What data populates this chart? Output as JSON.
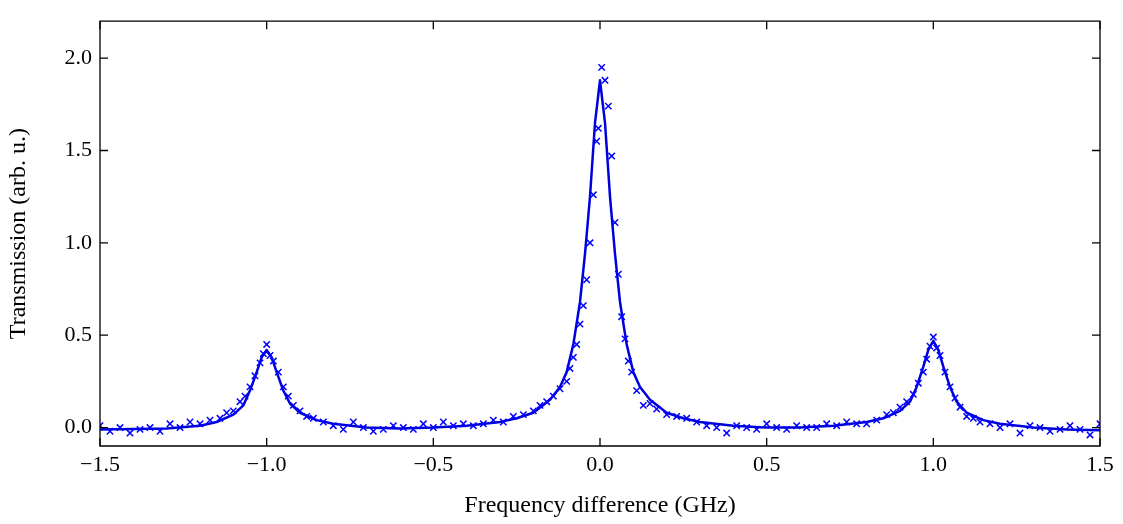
{
  "chart_data": {
    "type": "scatter",
    "xlabel": "Frequency difference (GHz)",
    "ylabel": "Transmission (arb. u.)",
    "xlim": [
      -1.5,
      1.5
    ],
    "xticks": [
      {
        "value": -1.5,
        "label": "−1.5"
      },
      {
        "value": -1.0,
        "label": "−1.0"
      },
      {
        "value": -0.5,
        "label": "−0.5"
      },
      {
        "value": 0,
        "label": "0.0"
      },
      {
        "value": 0.5,
        "label": "0.5"
      },
      {
        "value": 1.0,
        "label": "1.0"
      },
      {
        "value": 1.5,
        "label": "1.5"
      }
    ],
    "ylim": [
      -0.1,
      2.2
    ],
    "yticks": [
      {
        "value": 0,
        "label": "0.0"
      },
      {
        "value": 0.5,
        "label": "0.5"
      },
      {
        "value": 1.0,
        "label": "1.0"
      },
      {
        "value": 1.5,
        "label": "1.5"
      },
      {
        "value": 2.0,
        "label": "2.0"
      }
    ],
    "grid": false,
    "legend": false,
    "series": [
      {
        "type": "scatter",
        "marker": "cross",
        "color": "#0000ff",
        "x": [
          -1.5,
          -1.47,
          -1.44,
          -1.41,
          -1.38,
          -1.35,
          -1.32,
          -1.29,
          -1.26,
          -1.23,
          -1.2,
          -1.17,
          -1.14,
          -1.12,
          -1.1,
          -1.08,
          -1.065,
          -1.05,
          -1.035,
          -1.02,
          -1.01,
          -1.0,
          -0.99,
          -0.98,
          -0.965,
          -0.95,
          -0.935,
          -0.92,
          -0.9,
          -0.88,
          -0.86,
          -0.83,
          -0.8,
          -0.77,
          -0.74,
          -0.71,
          -0.68,
          -0.65,
          -0.62,
          -0.59,
          -0.56,
          -0.53,
          -0.5,
          -0.47,
          -0.44,
          -0.41,
          -0.38,
          -0.35,
          -0.32,
          -0.29,
          -0.26,
          -0.23,
          -0.2,
          -0.18,
          -0.16,
          -0.14,
          -0.12,
          -0.1,
          -0.09,
          -0.08,
          -0.07,
          -0.06,
          -0.05,
          -0.04,
          -0.03,
          -0.02,
          -0.01,
          -0.005,
          0.005,
          0.015,
          0.025,
          0.035,
          0.045,
          0.055,
          0.065,
          0.075,
          0.085,
          0.095,
          0.11,
          0.13,
          0.15,
          0.17,
          0.2,
          0.23,
          0.26,
          0.29,
          0.32,
          0.35,
          0.38,
          0.41,
          0.44,
          0.47,
          0.5,
          0.53,
          0.56,
          0.59,
          0.62,
          0.65,
          0.68,
          0.71,
          0.74,
          0.77,
          0.8,
          0.83,
          0.86,
          0.88,
          0.9,
          0.92,
          0.94,
          0.955,
          0.97,
          0.98,
          0.99,
          1.0,
          1.01,
          1.02,
          1.035,
          1.05,
          1.065,
          1.08,
          1.1,
          1.12,
          1.14,
          1.17,
          1.2,
          1.23,
          1.26,
          1.29,
          1.32,
          1.35,
          1.38,
          1.41,
          1.44,
          1.47,
          1.5
        ],
        "values": [
          0.01,
          -0.02,
          0.0,
          -0.03,
          -0.01,
          0.0,
          -0.02,
          0.02,
          0.0,
          0.03,
          0.02,
          0.04,
          0.05,
          0.08,
          0.09,
          0.14,
          0.17,
          0.22,
          0.28,
          0.35,
          0.4,
          0.45,
          0.39,
          0.36,
          0.3,
          0.22,
          0.17,
          0.12,
          0.09,
          0.06,
          0.05,
          0.03,
          0.01,
          -0.01,
          0.03,
          0.0,
          -0.02,
          -0.01,
          0.01,
          0.0,
          -0.01,
          0.02,
          0.0,
          0.03,
          0.01,
          0.02,
          0.01,
          0.02,
          0.04,
          0.03,
          0.06,
          0.07,
          0.09,
          0.12,
          0.14,
          0.17,
          0.21,
          0.25,
          0.32,
          0.38,
          0.45,
          0.56,
          0.66,
          0.8,
          1.0,
          1.26,
          1.55,
          1.62,
          1.95,
          1.88,
          1.74,
          1.47,
          1.11,
          0.83,
          0.6,
          0.48,
          0.36,
          0.3,
          0.2,
          0.12,
          0.13,
          0.1,
          0.07,
          0.06,
          0.05,
          0.03,
          0.01,
          0.0,
          -0.03,
          0.01,
          0.0,
          -0.01,
          0.02,
          0.0,
          -0.01,
          0.01,
          0.0,
          0.0,
          0.02,
          0.01,
          0.03,
          0.02,
          0.02,
          0.04,
          0.07,
          0.08,
          0.11,
          0.14,
          0.18,
          0.24,
          0.3,
          0.37,
          0.44,
          0.49,
          0.43,
          0.39,
          0.3,
          0.22,
          0.16,
          0.11,
          0.06,
          0.05,
          0.03,
          0.02,
          0.0,
          0.02,
          -0.03,
          0.01,
          0.0,
          -0.02,
          -0.01,
          0.01,
          -0.01,
          -0.04,
          0.02
        ]
      },
      {
        "type": "line",
        "marker": "none",
        "color": "#0000dd",
        "x": [
          -1.5,
          -1.3,
          -1.2,
          -1.15,
          -1.1,
          -1.07,
          -1.05,
          -1.03,
          -1.015,
          -1.0,
          -0.985,
          -0.97,
          -0.95,
          -0.93,
          -0.9,
          -0.85,
          -0.8,
          -0.7,
          -0.6,
          -0.5,
          -0.4,
          -0.3,
          -0.25,
          -0.2,
          -0.15,
          -0.12,
          -0.1,
          -0.08,
          -0.06,
          -0.045,
          -0.03,
          -0.015,
          0,
          0.015,
          0.03,
          0.045,
          0.06,
          0.08,
          0.1,
          0.12,
          0.15,
          0.2,
          0.25,
          0.3,
          0.4,
          0.5,
          0.6,
          0.7,
          0.8,
          0.85,
          0.9,
          0.93,
          0.95,
          0.97,
          0.985,
          1.0,
          1.015,
          1.03,
          1.05,
          1.07,
          1.1,
          1.15,
          1.2,
          1.3,
          1.4,
          1.5
        ],
        "values": [
          -0.01,
          -0.005,
          0.01,
          0.03,
          0.07,
          0.12,
          0.2,
          0.3,
          0.38,
          0.42,
          0.38,
          0.3,
          0.2,
          0.13,
          0.08,
          0.04,
          0.02,
          0.0,
          -0.005,
          0.0,
          0.01,
          0.03,
          0.05,
          0.08,
          0.15,
          0.22,
          0.3,
          0.45,
          0.68,
          0.94,
          1.25,
          1.65,
          1.88,
          1.65,
          1.25,
          0.94,
          0.68,
          0.45,
          0.3,
          0.22,
          0.15,
          0.08,
          0.05,
          0.03,
          0.01,
          0.0,
          0.0,
          0.01,
          0.03,
          0.05,
          0.09,
          0.14,
          0.22,
          0.33,
          0.42,
          0.47,
          0.42,
          0.33,
          0.22,
          0.14,
          0.08,
          0.04,
          0.02,
          0.0,
          -0.01,
          -0.015
        ]
      }
    ]
  }
}
